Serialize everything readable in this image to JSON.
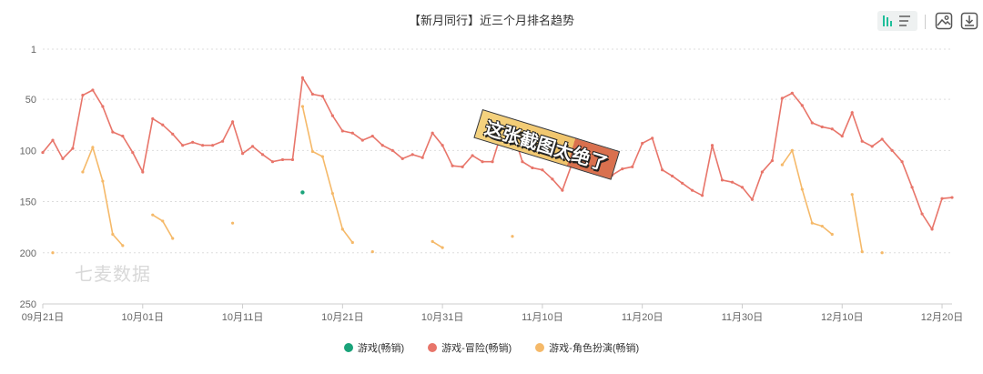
{
  "title": "【新月同行】近三个月排名趋势",
  "toolbar": {
    "icons": [
      "bar-chart-icon",
      "list-icon",
      "image-icon",
      "download-icon"
    ]
  },
  "watermark": "七麦数据",
  "sticker": "这张截图太绝了",
  "chart_data": {
    "type": "line",
    "title": "【新月同行】近三个月排名趋势",
    "y_inverted": true,
    "ylim": [
      1,
      250
    ],
    "y_ticks": [
      1,
      50,
      100,
      150,
      200,
      250
    ],
    "x_ticks": [
      "09月21日",
      "10月01日",
      "10月11日",
      "10月21日",
      "10月31日",
      "11月10日",
      "11月20日",
      "11月30日",
      "12月10日",
      "12月20日"
    ],
    "grid": true,
    "legend_position": "bottom",
    "x": [
      "09月21日",
      "09月22日",
      "09月23日",
      "09月24日",
      "09月25日",
      "09月26日",
      "09月27日",
      "09月28日",
      "09月29日",
      "09月30日",
      "10月01日",
      "10月02日",
      "10月03日",
      "10月04日",
      "10月05日",
      "10月06日",
      "10月07日",
      "10月08日",
      "10月09日",
      "10月10日",
      "10月11日",
      "10月12日",
      "10月13日",
      "10月14日",
      "10月15日",
      "10月16日",
      "10月17日",
      "10月18日",
      "10月19日",
      "10月20日",
      "10月21日",
      "10月22日",
      "10月23日",
      "10月24日",
      "10月25日",
      "10月26日",
      "10月27日",
      "10月28日",
      "10月29日",
      "10月30日",
      "10月31日",
      "11月01日",
      "11月02日",
      "11月03日",
      "11月04日",
      "11月05日",
      "11月06日",
      "11月07日",
      "11月08日",
      "11月09日",
      "11月10日",
      "11月11日",
      "11月12日",
      "11月13日",
      "11月14日",
      "11月15日",
      "11月16日",
      "11月17日",
      "11月18日",
      "11月19日",
      "11月20日",
      "11月21日",
      "11月22日",
      "11月23日",
      "11月24日",
      "11月25日",
      "11月26日",
      "11月27日",
      "11月28日",
      "11月29日",
      "11月30日",
      "12月01日",
      "12月02日",
      "12月03日",
      "12月04日",
      "12月05日",
      "12月06日",
      "12月07日",
      "12月08日",
      "12月09日",
      "12月10日",
      "12月11日",
      "12月12日",
      "12月13日",
      "12月14日",
      "12月15日",
      "12月16日",
      "12月17日",
      "12月18日",
      "12月19日",
      "12月20日",
      "12月21日"
    ],
    "series": [
      {
        "name": "游戏(畅销)",
        "color": "#1aa37a",
        "values": [
          null,
          null,
          null,
          null,
          null,
          null,
          null,
          null,
          null,
          null,
          null,
          null,
          null,
          null,
          null,
          null,
          null,
          null,
          null,
          null,
          null,
          null,
          null,
          null,
          null,
          null,
          141,
          null,
          null,
          null,
          null,
          null,
          null,
          null,
          null,
          null,
          null,
          null,
          null,
          null,
          null,
          null,
          null,
          null,
          null,
          null,
          null,
          null,
          null,
          null,
          null,
          null,
          null,
          null,
          null,
          null,
          null,
          null,
          null,
          null,
          null,
          null,
          null,
          null,
          null,
          null,
          null,
          null,
          null,
          null,
          null,
          null,
          null,
          null,
          null,
          null,
          null,
          null,
          null,
          null,
          null,
          null,
          null,
          null,
          null,
          null,
          null,
          null,
          null,
          null,
          null,
          null
        ]
      },
      {
        "name": "游戏-冒险(畅销)",
        "color": "#e8756a",
        "values": [
          102,
          90,
          108,
          98,
          46,
          41,
          57,
          82,
          86,
          102,
          121,
          69,
          75,
          84,
          95,
          92,
          95,
          95,
          91,
          72,
          103,
          96,
          104,
          111,
          109,
          109,
          29,
          45,
          47,
          66,
          81,
          83,
          90,
          86,
          95,
          100,
          108,
          104,
          107,
          83,
          95,
          115,
          116,
          105,
          111,
          111,
          80,
          80,
          111,
          117,
          119,
          128,
          139,
          112,
          106,
          106,
          108,
          124,
          118,
          116,
          93,
          88,
          119,
          125,
          132,
          139,
          144,
          95,
          129,
          131,
          136,
          148,
          121,
          110,
          49,
          44,
          56,
          73,
          77,
          79,
          86,
          63,
          91,
          96,
          89,
          100,
          111,
          136,
          162,
          177,
          147,
          146
        ]
      },
      {
        "name": "游戏-角色扮演(畅销)",
        "color": "#f5b969",
        "values": [
          null,
          200,
          null,
          null,
          121,
          97,
          130,
          182,
          193,
          null,
          null,
          163,
          169,
          186,
          null,
          null,
          null,
          null,
          null,
          171,
          null,
          null,
          null,
          null,
          null,
          null,
          57,
          101,
          106,
          142,
          177,
          190,
          null,
          199,
          null,
          null,
          null,
          null,
          null,
          189,
          195,
          null,
          null,
          null,
          null,
          null,
          null,
          184,
          null,
          null,
          null,
          null,
          null,
          null,
          null,
          null,
          null,
          null,
          null,
          null,
          null,
          null,
          null,
          null,
          null,
          null,
          null,
          null,
          null,
          null,
          null,
          null,
          null,
          null,
          114,
          100,
          138,
          171,
          174,
          182,
          null,
          143,
          199,
          null,
          200,
          null,
          null,
          null,
          null,
          null,
          null,
          null
        ]
      }
    ]
  }
}
